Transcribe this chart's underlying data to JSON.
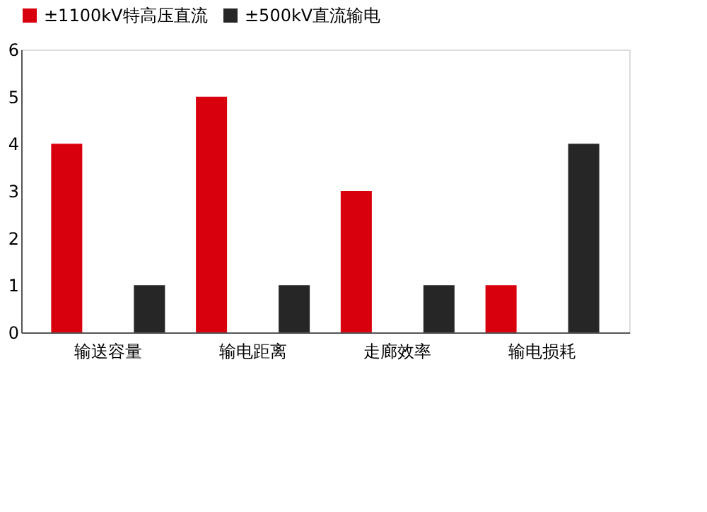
{
  "chart_data": {
    "type": "bar",
    "categories": [
      "输送容量",
      "输电距离",
      "走廊效率",
      "输电损耗"
    ],
    "series": [
      {
        "name": "±1100kV特高压直流",
        "color": "#d9000d",
        "values": [
          4,
          5,
          3,
          1
        ]
      },
      {
        "name": "±500kV直流输电",
        "color": "#262626",
        "values": [
          1,
          1,
          1,
          4
        ]
      }
    ],
    "ylim": [
      0,
      6
    ],
    "yticks": [
      0,
      1,
      2,
      3,
      4,
      5,
      6
    ],
    "grid": false,
    "legend": "top"
  }
}
